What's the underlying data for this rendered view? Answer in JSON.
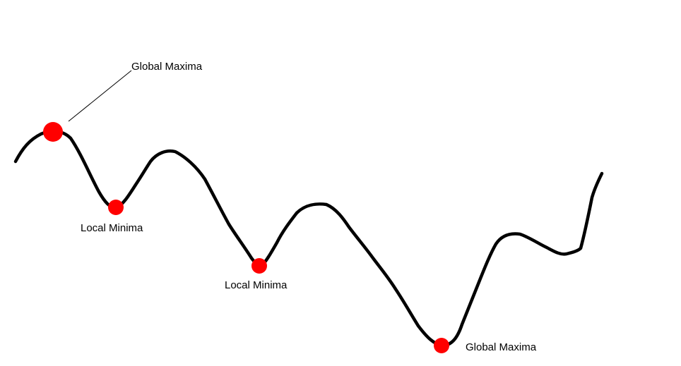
{
  "annotations": [
    {
      "id": "global-maxima-top",
      "text": "Global Maxima",
      "color": "#ff0000"
    },
    {
      "id": "local-minima-1",
      "text": "Local Minima",
      "color": "#ff0000"
    },
    {
      "id": "local-minima-2",
      "text": "Local Minima",
      "color": "#ff0000"
    },
    {
      "id": "global-maxima-bottom",
      "text": "Global Maxima",
      "color": "#ff0000"
    }
  ],
  "colors": {
    "curve": "#000000",
    "marker": "#ff0000",
    "leader": "#000000",
    "background": "#ffffff"
  }
}
